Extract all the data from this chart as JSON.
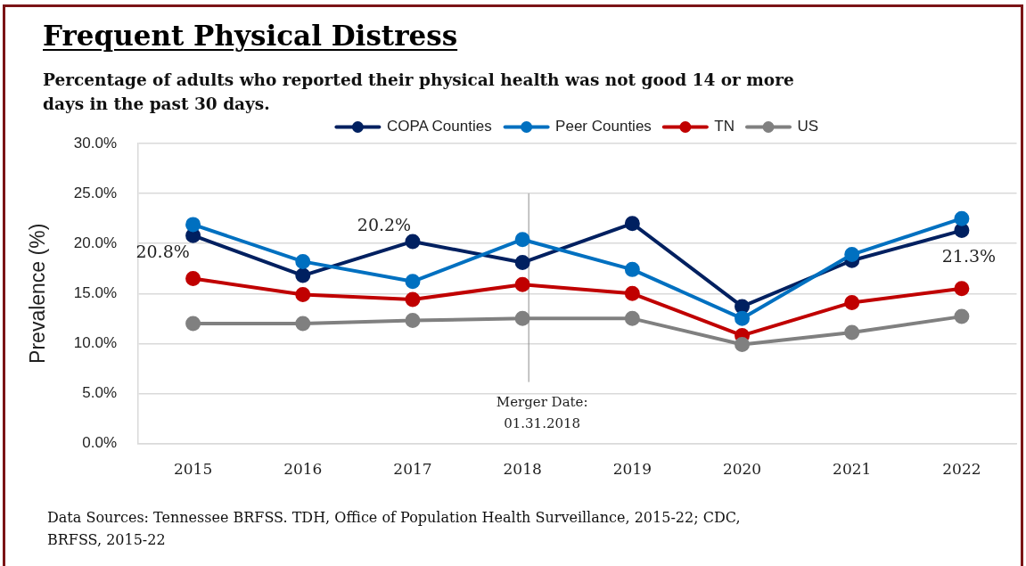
{
  "chart_data": {
    "type": "line",
    "title": "Frequent Physical Distress",
    "subtitle": "Percentage of adults who reported their physical health was not good 14 or more days in the past 30 days.",
    "ylabel": "Prevalence (%)",
    "categories": [
      "2015",
      "2016",
      "2017",
      "2018",
      "2019",
      "2020",
      "2021",
      "2022"
    ],
    "series": [
      {
        "name": "COPA Counties",
        "color": "#002060",
        "values": [
          20.8,
          16.8,
          20.2,
          18.1,
          22.0,
          13.7,
          18.3,
          21.3
        ],
        "value_labels": [
          "20.8%",
          null,
          "20.2%",
          null,
          null,
          null,
          null,
          "21.3%"
        ]
      },
      {
        "name": "Peer Counties",
        "color": "#0070c0",
        "values": [
          21.9,
          18.2,
          16.2,
          20.4,
          17.4,
          12.5,
          18.9,
          22.5
        ]
      },
      {
        "name": "TN",
        "color": "#c00000",
        "values": [
          16.5,
          14.9,
          14.4,
          15.9,
          15.0,
          10.8,
          14.1,
          15.5
        ]
      },
      {
        "name": "US",
        "color": "#808080",
        "values": [
          12.0,
          12.0,
          12.3,
          12.5,
          12.5,
          9.9,
          11.1,
          12.7
        ]
      }
    ],
    "ylim": [
      0,
      30
    ],
    "yticks": [
      {
        "value": 0,
        "label": "0.0%"
      },
      {
        "value": 5,
        "label": "5.0%"
      },
      {
        "value": 10,
        "label": "10.0%"
      },
      {
        "value": 15,
        "label": "15.0%"
      },
      {
        "value": 20,
        "label": "20.0%"
      },
      {
        "value": 25,
        "label": "25.0%"
      },
      {
        "value": 30,
        "label": "30.0%"
      }
    ],
    "grid": "y",
    "legend": "top",
    "marker": "circle",
    "ref_lines": [
      {
        "axis": "x",
        "value": "2018",
        "label": "Merger Date: 01.31.2018",
        "color": "#8c8c8c"
      }
    ],
    "annotations": [
      "Data Sources: Tennessee BRFSS. TDH, Office of Population Health Surveillance, 2015-22; CDC, BRFSS, 2015-22"
    ]
  }
}
